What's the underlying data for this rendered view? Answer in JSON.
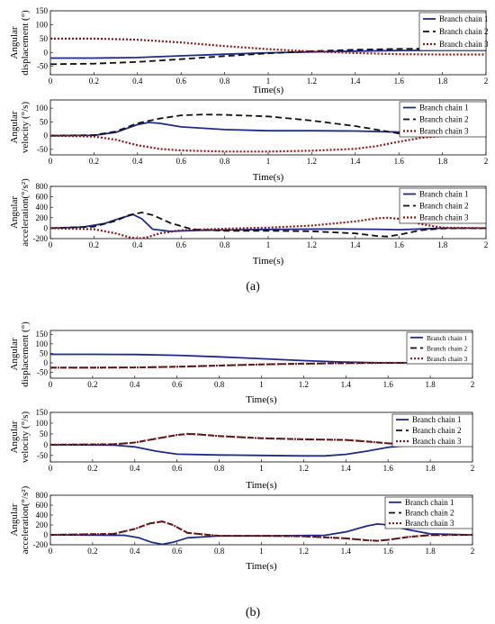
{
  "captions": [
    "(a)",
    "(b)"
  ],
  "colors": {
    "branch_chain_1": "#1f2a8c",
    "branch_chain_2": "#111111",
    "branch_chain_3": "#8b1a1a"
  },
  "chart_data": [
    {
      "type": "line",
      "group": "(a)",
      "xlabel": "Time(s)",
      "ylabel": [
        "Angular",
        "displacement (°)"
      ],
      "xlim": [
        0,
        2
      ],
      "ylim": [
        -80,
        150
      ],
      "xticks": [
        0,
        0.2,
        0.4,
        0.6,
        0.8,
        1,
        1.2,
        1.4,
        1.6,
        1.8,
        2
      ],
      "yticks": [
        -50,
        0,
        50,
        100,
        150
      ],
      "legend": "top-right",
      "series": [
        {
          "name": "Branch chain 1",
          "x": [
            0,
            0.2,
            0.4,
            0.6,
            0.8,
            1.0,
            1.2,
            1.4,
            1.6,
            1.8,
            2.0
          ],
          "y": [
            -20,
            -20,
            -18,
            -12,
            -6,
            -1,
            2,
            5,
            7,
            8,
            8
          ]
        },
        {
          "name": "Branch chain 2",
          "x": [
            0,
            0.2,
            0.4,
            0.6,
            0.8,
            1.0,
            1.2,
            1.4,
            1.6,
            1.8,
            2.0
          ],
          "y": [
            -42,
            -40,
            -34,
            -24,
            -13,
            -3,
            5,
            10,
            13,
            14,
            14
          ]
        },
        {
          "name": "Branch chain 3",
          "x": [
            0,
            0.2,
            0.4,
            0.6,
            0.8,
            1.0,
            1.2,
            1.4,
            1.6,
            1.8,
            2.0
          ],
          "y": [
            50,
            50,
            46,
            36,
            23,
            12,
            4,
            -2,
            -6,
            -7,
            -7
          ]
        }
      ]
    },
    {
      "type": "line",
      "group": "(a)",
      "xlabel": "Time(s)",
      "ylabel": [
        "Angular",
        "velocity (°/s)"
      ],
      "xlim": [
        0,
        2
      ],
      "ylim": [
        -70,
        130
      ],
      "xticks": [
        0,
        0.2,
        0.4,
        0.6,
        0.8,
        1,
        1.2,
        1.4,
        1.6,
        1.8,
        2
      ],
      "yticks": [
        -50,
        0,
        50,
        100
      ],
      "legend": "top-right",
      "series": [
        {
          "name": "Branch chain 1",
          "x": [
            0,
            0.2,
            0.3,
            0.4,
            0.45,
            0.5,
            0.6,
            0.8,
            1.0,
            1.2,
            1.4,
            1.6,
            1.7,
            1.8,
            2.0
          ],
          "y": [
            0,
            1,
            12,
            40,
            48,
            45,
            32,
            22,
            18,
            18,
            17,
            13,
            6,
            1,
            0
          ]
        },
        {
          "name": "Branch chain 2",
          "x": [
            0,
            0.2,
            0.3,
            0.4,
            0.5,
            0.6,
            0.7,
            0.8,
            1.0,
            1.2,
            1.4,
            1.6,
            1.7,
            1.8,
            2.0
          ],
          "y": [
            0,
            2,
            15,
            45,
            62,
            74,
            77,
            76,
            70,
            55,
            35,
            8,
            1,
            0,
            0
          ]
        },
        {
          "name": "Branch chain 3",
          "x": [
            0,
            0.2,
            0.3,
            0.4,
            0.5,
            0.6,
            0.8,
            1.0,
            1.2,
            1.4,
            1.5,
            1.6,
            1.7,
            1.8,
            2.0
          ],
          "y": [
            0,
            -3,
            -15,
            -35,
            -48,
            -54,
            -58,
            -58,
            -55,
            -48,
            -38,
            -22,
            -8,
            -1,
            0
          ]
        }
      ]
    },
    {
      "type": "line",
      "group": "(a)",
      "xlabel": "Time(s)",
      "ylabel": [
        "Angular",
        "acceleration(°/s²)"
      ],
      "xlim": [
        0,
        2
      ],
      "ylim": [
        -200,
        800
      ],
      "xticks": [
        0,
        0.2,
        0.4,
        0.6,
        0.8,
        1,
        1.2,
        1.4,
        1.6,
        1.8,
        2
      ],
      "yticks": [
        -200,
        0,
        200,
        400,
        600,
        800
      ],
      "legend": "top-right",
      "series": [
        {
          "name": "Branch chain 1",
          "x": [
            0,
            0.15,
            0.25,
            0.32,
            0.38,
            0.42,
            0.47,
            0.55,
            0.7,
            1.0,
            1.3,
            1.5,
            1.6,
            1.7,
            1.8,
            2.0
          ],
          "y": [
            0,
            20,
            90,
            190,
            260,
            180,
            -20,
            -60,
            -40,
            -25,
            -15,
            -20,
            -30,
            -15,
            0,
            0
          ]
        },
        {
          "name": "Branch chain 2",
          "x": [
            0,
            0.2,
            0.3,
            0.36,
            0.42,
            0.47,
            0.55,
            0.65,
            0.8,
            1.0,
            1.2,
            1.4,
            1.5,
            1.55,
            1.62,
            1.7,
            1.8,
            2.0
          ],
          "y": [
            0,
            30,
            140,
            250,
            300,
            250,
            100,
            -20,
            -50,
            -50,
            -60,
            -100,
            -150,
            -160,
            -110,
            -40,
            -5,
            0
          ]
        },
        {
          "name": "Branch chain 3",
          "x": [
            0,
            0.2,
            0.3,
            0.36,
            0.4,
            0.45,
            0.5,
            0.6,
            0.8,
            1.0,
            1.2,
            1.4,
            1.5,
            1.55,
            1.62,
            1.7,
            1.8,
            2.0
          ],
          "y": [
            0,
            -20,
            -100,
            -170,
            -200,
            -170,
            -100,
            -40,
            -10,
            10,
            50,
            130,
            190,
            200,
            170,
            80,
            10,
            0
          ]
        }
      ]
    },
    {
      "type": "line",
      "group": "(b)",
      "xlabel": "Time(s)",
      "ylabel": [
        "Angular",
        "displacement (°)"
      ],
      "xlim": [
        0,
        2
      ],
      "ylim": [
        -80,
        170
      ],
      "xticks": [
        0,
        0.2,
        0.4,
        0.6,
        0.8,
        1,
        1.2,
        1.4,
        1.6,
        1.8,
        2
      ],
      "yticks": [
        -50,
        0,
        50,
        100,
        150
      ],
      "legend": "top-right",
      "series": [
        {
          "name": "Branch chain 1",
          "x": [
            0,
            0.2,
            0.4,
            0.6,
            0.8,
            1.0,
            1.2,
            1.4,
            1.6,
            1.8,
            2.0
          ],
          "y": [
            45,
            45,
            44,
            40,
            32,
            22,
            12,
            4,
            0,
            0,
            0
          ]
        },
        {
          "name": "Branch chain 2",
          "x": [
            0,
            0.2,
            0.4,
            0.6,
            0.8,
            1.0,
            1.2,
            1.4,
            1.6,
            1.8,
            2.0
          ],
          "y": [
            -25,
            -25,
            -24,
            -20,
            -14,
            -8,
            -4,
            -1,
            0,
            0,
            0
          ]
        },
        {
          "name": "Branch chain 3",
          "x": [
            0,
            0.2,
            0.4,
            0.6,
            0.8,
            1.0,
            1.2,
            1.4,
            1.6,
            1.8,
            2.0
          ],
          "y": [
            -25,
            -25,
            -24,
            -20,
            -14,
            -8,
            -4,
            -1,
            0,
            0,
            0
          ]
        }
      ]
    },
    {
      "type": "line",
      "group": "(b)",
      "xlabel": "Time(s)",
      "ylabel": [
        "Angular",
        "velocity (°/s)"
      ],
      "xlim": [
        0,
        2
      ],
      "ylim": [
        -80,
        150
      ],
      "xticks": [
        0,
        0.2,
        0.4,
        0.6,
        0.8,
        1,
        1.2,
        1.4,
        1.6,
        1.8,
        2
      ],
      "yticks": [
        -50,
        0,
        50,
        100,
        150
      ],
      "legend": "top-right",
      "series": [
        {
          "name": "Branch chain 1",
          "x": [
            0,
            0.3,
            0.4,
            0.5,
            0.6,
            0.8,
            1.0,
            1.2,
            1.3,
            1.4,
            1.5,
            1.6,
            1.7,
            1.8,
            2.0
          ],
          "y": [
            0,
            -2,
            -10,
            -30,
            -44,
            -48,
            -50,
            -52,
            -52,
            -45,
            -30,
            -12,
            -3,
            0,
            0
          ]
        },
        {
          "name": "Branch chain 2",
          "x": [
            0,
            0.3,
            0.4,
            0.5,
            0.6,
            0.65,
            0.7,
            0.8,
            1.0,
            1.2,
            1.4,
            1.5,
            1.6,
            1.7,
            1.8,
            2.0
          ],
          "y": [
            0,
            2,
            10,
            28,
            45,
            50,
            48,
            40,
            30,
            25,
            22,
            15,
            6,
            2,
            0,
            0
          ]
        },
        {
          "name": "Branch chain 3",
          "x": [
            0,
            0.3,
            0.4,
            0.5,
            0.6,
            0.65,
            0.7,
            0.8,
            1.0,
            1.2,
            1.4,
            1.5,
            1.6,
            1.7,
            1.8,
            2.0
          ],
          "y": [
            0,
            2,
            10,
            28,
            45,
            50,
            48,
            40,
            30,
            25,
            22,
            15,
            6,
            2,
            0,
            0
          ]
        }
      ]
    },
    {
      "type": "line",
      "group": "(b)",
      "xlabel": "Time(s)",
      "ylabel": [
        "Angular",
        "acceleration(°/s²)"
      ],
      "xlim": [
        0,
        2
      ],
      "ylim": [
        -200,
        800
      ],
      "xticks": [
        0,
        0.2,
        0.4,
        0.6,
        0.8,
        1,
        1.2,
        1.4,
        1.6,
        1.8,
        2
      ],
      "yticks": [
        -200,
        0,
        200,
        400,
        600,
        800
      ],
      "legend": "top-right",
      "series": [
        {
          "name": "Branch chain 1",
          "x": [
            0,
            0.35,
            0.42,
            0.48,
            0.53,
            0.58,
            0.65,
            0.8,
            1.0,
            1.3,
            1.4,
            1.5,
            1.55,
            1.6,
            1.7,
            1.8,
            2.0
          ],
          "y": [
            0,
            -10,
            -60,
            -150,
            -190,
            -150,
            -60,
            -20,
            -20,
            -10,
            60,
            180,
            220,
            200,
            100,
            20,
            0
          ]
        },
        {
          "name": "Branch chain 2",
          "x": [
            0,
            0.3,
            0.4,
            0.47,
            0.53,
            0.58,
            0.65,
            0.8,
            1.0,
            1.2,
            1.4,
            1.5,
            1.55,
            1.6,
            1.7,
            1.8,
            2.0
          ],
          "y": [
            0,
            20,
            120,
            230,
            270,
            200,
            40,
            -20,
            -20,
            -30,
            -70,
            -110,
            -120,
            -100,
            -40,
            -5,
            0
          ]
        },
        {
          "name": "Branch chain 3",
          "x": [
            0,
            0.3,
            0.4,
            0.47,
            0.53,
            0.58,
            0.65,
            0.8,
            1.0,
            1.2,
            1.4,
            1.5,
            1.55,
            1.6,
            1.7,
            1.8,
            2.0
          ],
          "y": [
            0,
            20,
            120,
            230,
            270,
            200,
            40,
            -20,
            -20,
            -30,
            -70,
            -110,
            -120,
            -100,
            -40,
            -5,
            0
          ]
        }
      ]
    }
  ]
}
